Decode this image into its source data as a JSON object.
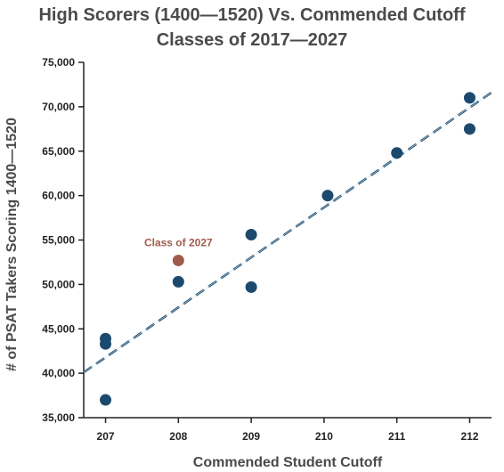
{
  "chart_data": {
    "type": "scatter",
    "title": "High Scorers (1400—1520) Vs. Commended Cutoff",
    "subtitle": "Classes of 2017—2027",
    "xlabel": "Commended Student Cutoff",
    "ylabel": "# of PSAT Takers Scoring 1400—1520",
    "xlim": [
      206.7,
      212.3
    ],
    "ylim": [
      35000,
      75000
    ],
    "x_ticks": [
      207,
      208,
      209,
      210,
      211,
      212
    ],
    "y_ticks": [
      35000,
      40000,
      45000,
      50000,
      55000,
      60000,
      65000,
      70000,
      75000
    ],
    "y_tick_labels": [
      "35,000",
      "40,000",
      "45,000",
      "50,000",
      "55,000",
      "60,000",
      "65,000",
      "70,000",
      "75,000"
    ],
    "grid": false,
    "points": [
      {
        "x": 207,
        "y": 37000
      },
      {
        "x": 207,
        "y": 43300
      },
      {
        "x": 207,
        "y": 43900
      },
      {
        "x": 208,
        "y": 50300
      },
      {
        "x": 209,
        "y": 49700
      },
      {
        "x": 209,
        "y": 55600
      },
      {
        "x": 210.05,
        "y": 60000
      },
      {
        "x": 211,
        "y": 64800
      },
      {
        "x": 212,
        "y": 67500
      },
      {
        "x": 212,
        "y": 71000
      }
    ],
    "highlight": {
      "x": 208,
      "y": 52700,
      "label": "Class of 2027"
    },
    "trendline": {
      "style": "dashed",
      "x": [
        206.7,
        212.3
      ],
      "y": [
        40100,
        71600
      ]
    },
    "colors": {
      "points": "#1b4a6e",
      "highlight": "#a15a4c",
      "trend": "#1b4a6e",
      "text": "#4a4a4a"
    }
  }
}
